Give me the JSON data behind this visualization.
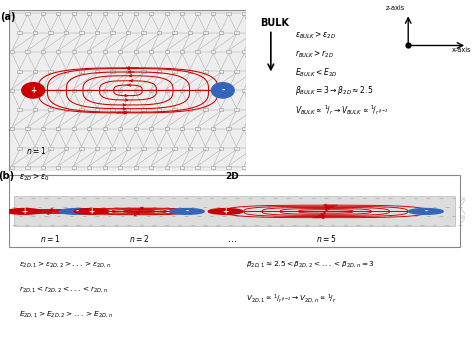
{
  "red_color": "#CC0000",
  "blue_color": "#3366BB",
  "lattice_node_color": "#999999",
  "lattice_line_color": "#AAAAAA",
  "stripe_color": "#E8E8E8",
  "bg_a_color": "#EEEEEE",
  "bulk_eqs": [
    "$\\epsilon_{BULK} > \\epsilon_{2D}$",
    "$r_{BULK} > r_{2D}$",
    "$E_{BULK} < E_{2D}$",
    "$\\beta_{BULK} = 3 \\rightarrow \\beta_{2D} \\approx 2.5$",
    "$V_{BULK} \\propto \\frac{1}{r} \\rightarrow V_{BULK} \\propto \\frac{1}{r^{\\beta-2}}$"
  ],
  "bottom_eqs_left": [
    "$\\epsilon_{2D,1} > \\epsilon_{2D,2} > ... > \\epsilon_{2D,n}$",
    "$r_{2D,1} < r_{2D,2} < ... < r_{2D,n}$",
    "$E_{2D,1} > E_{2D,2} > ... > E_{2D,n}$"
  ],
  "bottom_eqs_right": [
    "$\\beta_{2D,1} \\approx 2.5 < \\beta_{2D,2} < ... < \\beta_{2D,n} = 3$",
    "$V_{2D,1} \\propto \\frac{1}{r^{\\beta-2}} \\rightarrow V_{2D,n} \\propto \\frac{1}{r}$"
  ]
}
